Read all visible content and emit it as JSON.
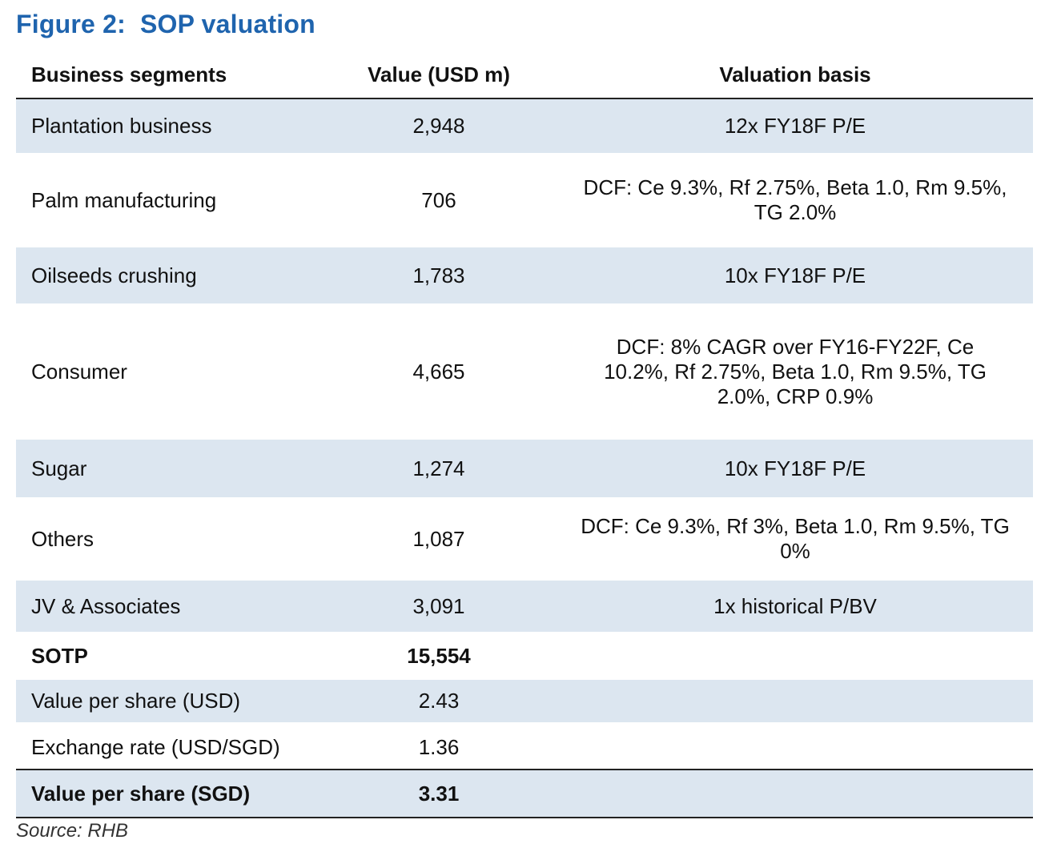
{
  "figure": {
    "label": "Figure 2:",
    "title": "SOP valuation"
  },
  "table": {
    "headers": [
      "Business segments",
      "Value (USD m)",
      "Valuation basis"
    ],
    "rows": [
      {
        "segment": "Plantation business",
        "value": "2,948",
        "basis": "12x FY18F P/E"
      },
      {
        "segment": "Palm manufacturing",
        "value": "706",
        "basis": "DCF: Ce 9.3%, Rf 2.75%, Beta 1.0, Rm 9.5%, TG 2.0%"
      },
      {
        "segment": "Oilseeds crushing",
        "value": "1,783",
        "basis": "10x FY18F P/E"
      },
      {
        "segment": "Consumer",
        "value": "4,665",
        "basis": "DCF: 8% CAGR over FY16-FY22F, Ce 10.2%, Rf 2.75%, Beta 1.0, Rm 9.5%, TG 2.0%, CRP 0.9%"
      },
      {
        "segment": "Sugar",
        "value": "1,274",
        "basis": "10x FY18F P/E"
      },
      {
        "segment": "Others",
        "value": "1,087",
        "basis": "DCF: Ce 9.3%, Rf 3%, Beta 1.0, Rm 9.5%, TG 0%"
      },
      {
        "segment": "JV & Associates",
        "value": "3,091",
        "basis": "1x historical P/BV"
      },
      {
        "segment": "SOTP",
        "value": "15,554",
        "basis": ""
      },
      {
        "segment": "Value per share (USD)",
        "value": "2.43",
        "basis": ""
      },
      {
        "segment": "Exchange rate (USD/SGD)",
        "value": "1.36",
        "basis": ""
      },
      {
        "segment": "Value per share (SGD)",
        "value": "3.31",
        "basis": ""
      }
    ]
  },
  "source": "Source: RHB",
  "colors": {
    "title": "#1f64ae",
    "row_shade": "#dce6f0"
  }
}
